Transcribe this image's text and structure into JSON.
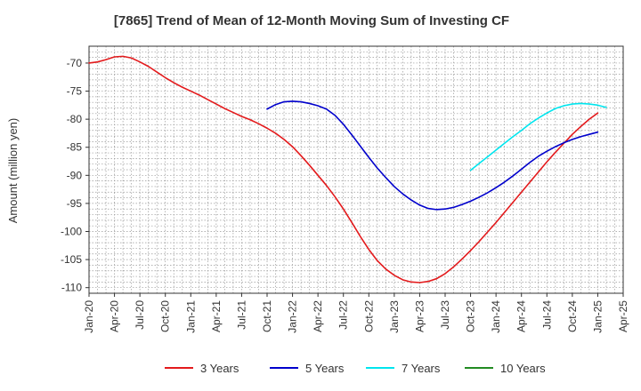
{
  "chart_data": {
    "type": "line",
    "title": "[7865]  Trend of Mean of 12-Month Moving Sum of Investing CF",
    "xlabel": "",
    "ylabel": "Amount (million yen)",
    "ylim": [
      -111,
      -67
    ],
    "yticks": [
      -70,
      -75,
      -80,
      -85,
      -90,
      -95,
      -100,
      -105,
      -110
    ],
    "x_tick_labels": [
      "Jan-20",
      "Apr-20",
      "Jul-20",
      "Oct-20",
      "Jan-21",
      "Apr-21",
      "Jul-21",
      "Oct-21",
      "Jan-22",
      "Apr-22",
      "Jul-22",
      "Oct-22",
      "Jan-23",
      "Apr-23",
      "Jul-23",
      "Oct-23",
      "Jan-24",
      "Apr-24",
      "Jul-24",
      "Oct-24",
      "Jan-25",
      "Apr-25"
    ],
    "grid": true,
    "legend_position": "bottom",
    "series": [
      {
        "name": "3 Years",
        "color": "#e31a1c",
        "points": [
          [
            0,
            -70
          ],
          [
            1,
            -69.8
          ],
          [
            2,
            -69.4
          ],
          [
            3,
            -68.9
          ],
          [
            4,
            -68.8
          ],
          [
            5,
            -69.1
          ],
          [
            6,
            -69.8
          ],
          [
            7,
            -70.6
          ],
          [
            8,
            -71.6
          ],
          [
            9,
            -72.6
          ],
          [
            10,
            -73.5
          ],
          [
            11,
            -74.3
          ],
          [
            12,
            -75
          ],
          [
            13,
            -75.7
          ],
          [
            14,
            -76.5
          ],
          [
            15,
            -77.3
          ],
          [
            16,
            -78.1
          ],
          [
            17,
            -78.8
          ],
          [
            18,
            -79.5
          ],
          [
            19,
            -80.1
          ],
          [
            20,
            -80.8
          ],
          [
            21,
            -81.6
          ],
          [
            22,
            -82.5
          ],
          [
            23,
            -83.6
          ],
          [
            24,
            -84.9
          ],
          [
            25,
            -86.5
          ],
          [
            26,
            -88.2
          ],
          [
            27,
            -90
          ],
          [
            28,
            -91.8
          ],
          [
            29,
            -93.8
          ],
          [
            30,
            -96
          ],
          [
            31,
            -98.4
          ],
          [
            32,
            -100.9
          ],
          [
            33,
            -103.2
          ],
          [
            34,
            -105.2
          ],
          [
            35,
            -106.7
          ],
          [
            36,
            -107.8
          ],
          [
            37,
            -108.6
          ],
          [
            38,
            -109
          ],
          [
            39,
            -109.1
          ],
          [
            40,
            -108.9
          ],
          [
            41,
            -108.4
          ],
          [
            42,
            -107.5
          ],
          [
            43,
            -106.3
          ],
          [
            44,
            -104.9
          ],
          [
            45,
            -103.4
          ],
          [
            46,
            -101.8
          ],
          [
            47,
            -100.1
          ],
          [
            48,
            -98.4
          ],
          [
            49,
            -96.6
          ],
          [
            50,
            -94.8
          ],
          [
            51,
            -93
          ],
          [
            52,
            -91.2
          ],
          [
            53,
            -89.4
          ],
          [
            54,
            -87.6
          ],
          [
            55,
            -85.9
          ],
          [
            56,
            -84.3
          ],
          [
            57,
            -82.7
          ],
          [
            58,
            -81.3
          ],
          [
            59,
            -80
          ],
          [
            60,
            -78.9
          ]
        ]
      },
      {
        "name": "5 Years",
        "color": "#0000cc",
        "points": [
          [
            21,
            -78.2
          ],
          [
            22,
            -77.4
          ],
          [
            23,
            -76.9
          ],
          [
            24,
            -76.8
          ],
          [
            25,
            -76.9
          ],
          [
            26,
            -77.2
          ],
          [
            27,
            -77.6
          ],
          [
            28,
            -78.2
          ],
          [
            29,
            -79.3
          ],
          [
            30,
            -80.9
          ],
          [
            31,
            -82.8
          ],
          [
            32,
            -84.8
          ],
          [
            33,
            -86.8
          ],
          [
            34,
            -88.7
          ],
          [
            35,
            -90.4
          ],
          [
            36,
            -92
          ],
          [
            37,
            -93.3
          ],
          [
            38,
            -94.4
          ],
          [
            39,
            -95.3
          ],
          [
            40,
            -95.9
          ],
          [
            41,
            -96.1
          ],
          [
            42,
            -96
          ],
          [
            43,
            -95.7
          ],
          [
            44,
            -95.2
          ],
          [
            45,
            -94.6
          ],
          [
            46,
            -93.9
          ],
          [
            47,
            -93.1
          ],
          [
            48,
            -92.2
          ],
          [
            49,
            -91.2
          ],
          [
            50,
            -90.1
          ],
          [
            51,
            -88.9
          ],
          [
            52,
            -87.7
          ],
          [
            53,
            -86.6
          ],
          [
            54,
            -85.7
          ],
          [
            55,
            -84.9
          ],
          [
            56,
            -84.2
          ],
          [
            57,
            -83.6
          ],
          [
            58,
            -83.1
          ],
          [
            59,
            -82.7
          ],
          [
            60,
            -82.3
          ]
        ]
      },
      {
        "name": "7 Years",
        "color": "#00e5ee",
        "points": [
          [
            45,
            -89.1
          ],
          [
            46,
            -87.9
          ],
          [
            47,
            -86.7
          ],
          [
            48,
            -85.5
          ],
          [
            49,
            -84.3
          ],
          [
            50,
            -83.1
          ],
          [
            51,
            -82
          ],
          [
            52,
            -80.8
          ],
          [
            53,
            -79.8
          ],
          [
            54,
            -78.9
          ],
          [
            55,
            -78.1
          ],
          [
            56,
            -77.6
          ],
          [
            57,
            -77.3
          ],
          [
            58,
            -77.2
          ],
          [
            59,
            -77.3
          ],
          [
            60,
            -77.5
          ],
          [
            61,
            -77.9
          ]
        ]
      },
      {
        "name": "10 Years",
        "color": "#228b22",
        "points": []
      }
    ]
  }
}
